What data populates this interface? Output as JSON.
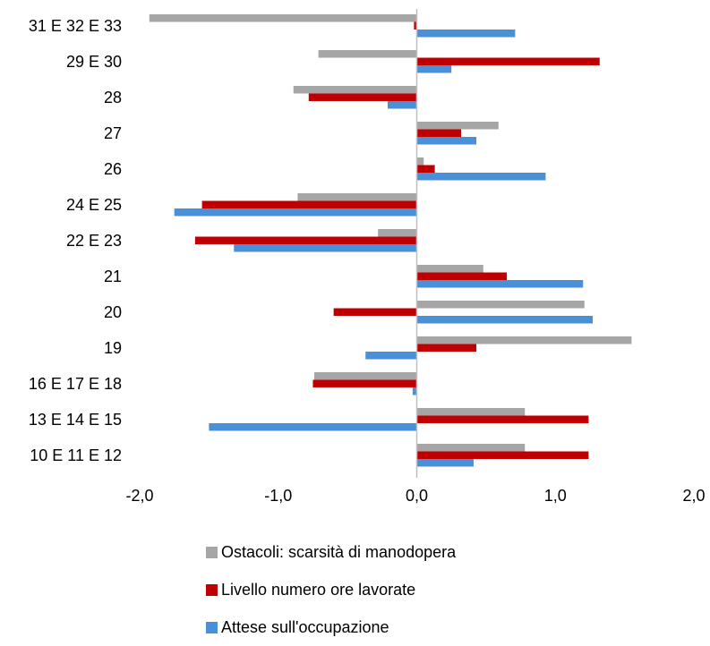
{
  "chart_data": {
    "type": "bar",
    "orientation": "horizontal",
    "categories": [
      "10 E 11 E 12",
      "13 E 14 E 15",
      "16 E 17 E 18",
      "19",
      "20",
      "21",
      "22 E 23",
      "24 E 25",
      "26",
      "27",
      "28",
      "29 E 30",
      "31 E 32 E 33"
    ],
    "series": [
      {
        "name": "Ostacoli: scarsità di manodopera",
        "color": "#a6a6a6",
        "values": [
          0.78,
          0.78,
          -0.74,
          1.55,
          1.21,
          0.48,
          -0.28,
          -0.86,
          0.05,
          0.59,
          -0.89,
          -0.71,
          -1.93
        ]
      },
      {
        "name": "Livello numero ore lavorate",
        "color": "#c00000",
        "values": [
          1.24,
          1.24,
          -0.75,
          0.43,
          -0.6,
          0.65,
          -1.6,
          -1.55,
          0.13,
          0.32,
          -0.78,
          1.32,
          -0.02
        ]
      },
      {
        "name": "Attese sull'occupazione",
        "color": "#4a90d9",
        "values": [
          0.41,
          -1.5,
          -0.03,
          -0.37,
          1.27,
          1.2,
          -1.32,
          -1.75,
          0.93,
          0.43,
          -0.21,
          0.25,
          0.71
        ]
      }
    ],
    "xlim": [
      -2.0,
      2.0
    ],
    "xticks": [
      "-2,0",
      "-1,0",
      "0,0",
      "1,0",
      "2,0"
    ],
    "grid": false,
    "legend_position": "bottom"
  }
}
